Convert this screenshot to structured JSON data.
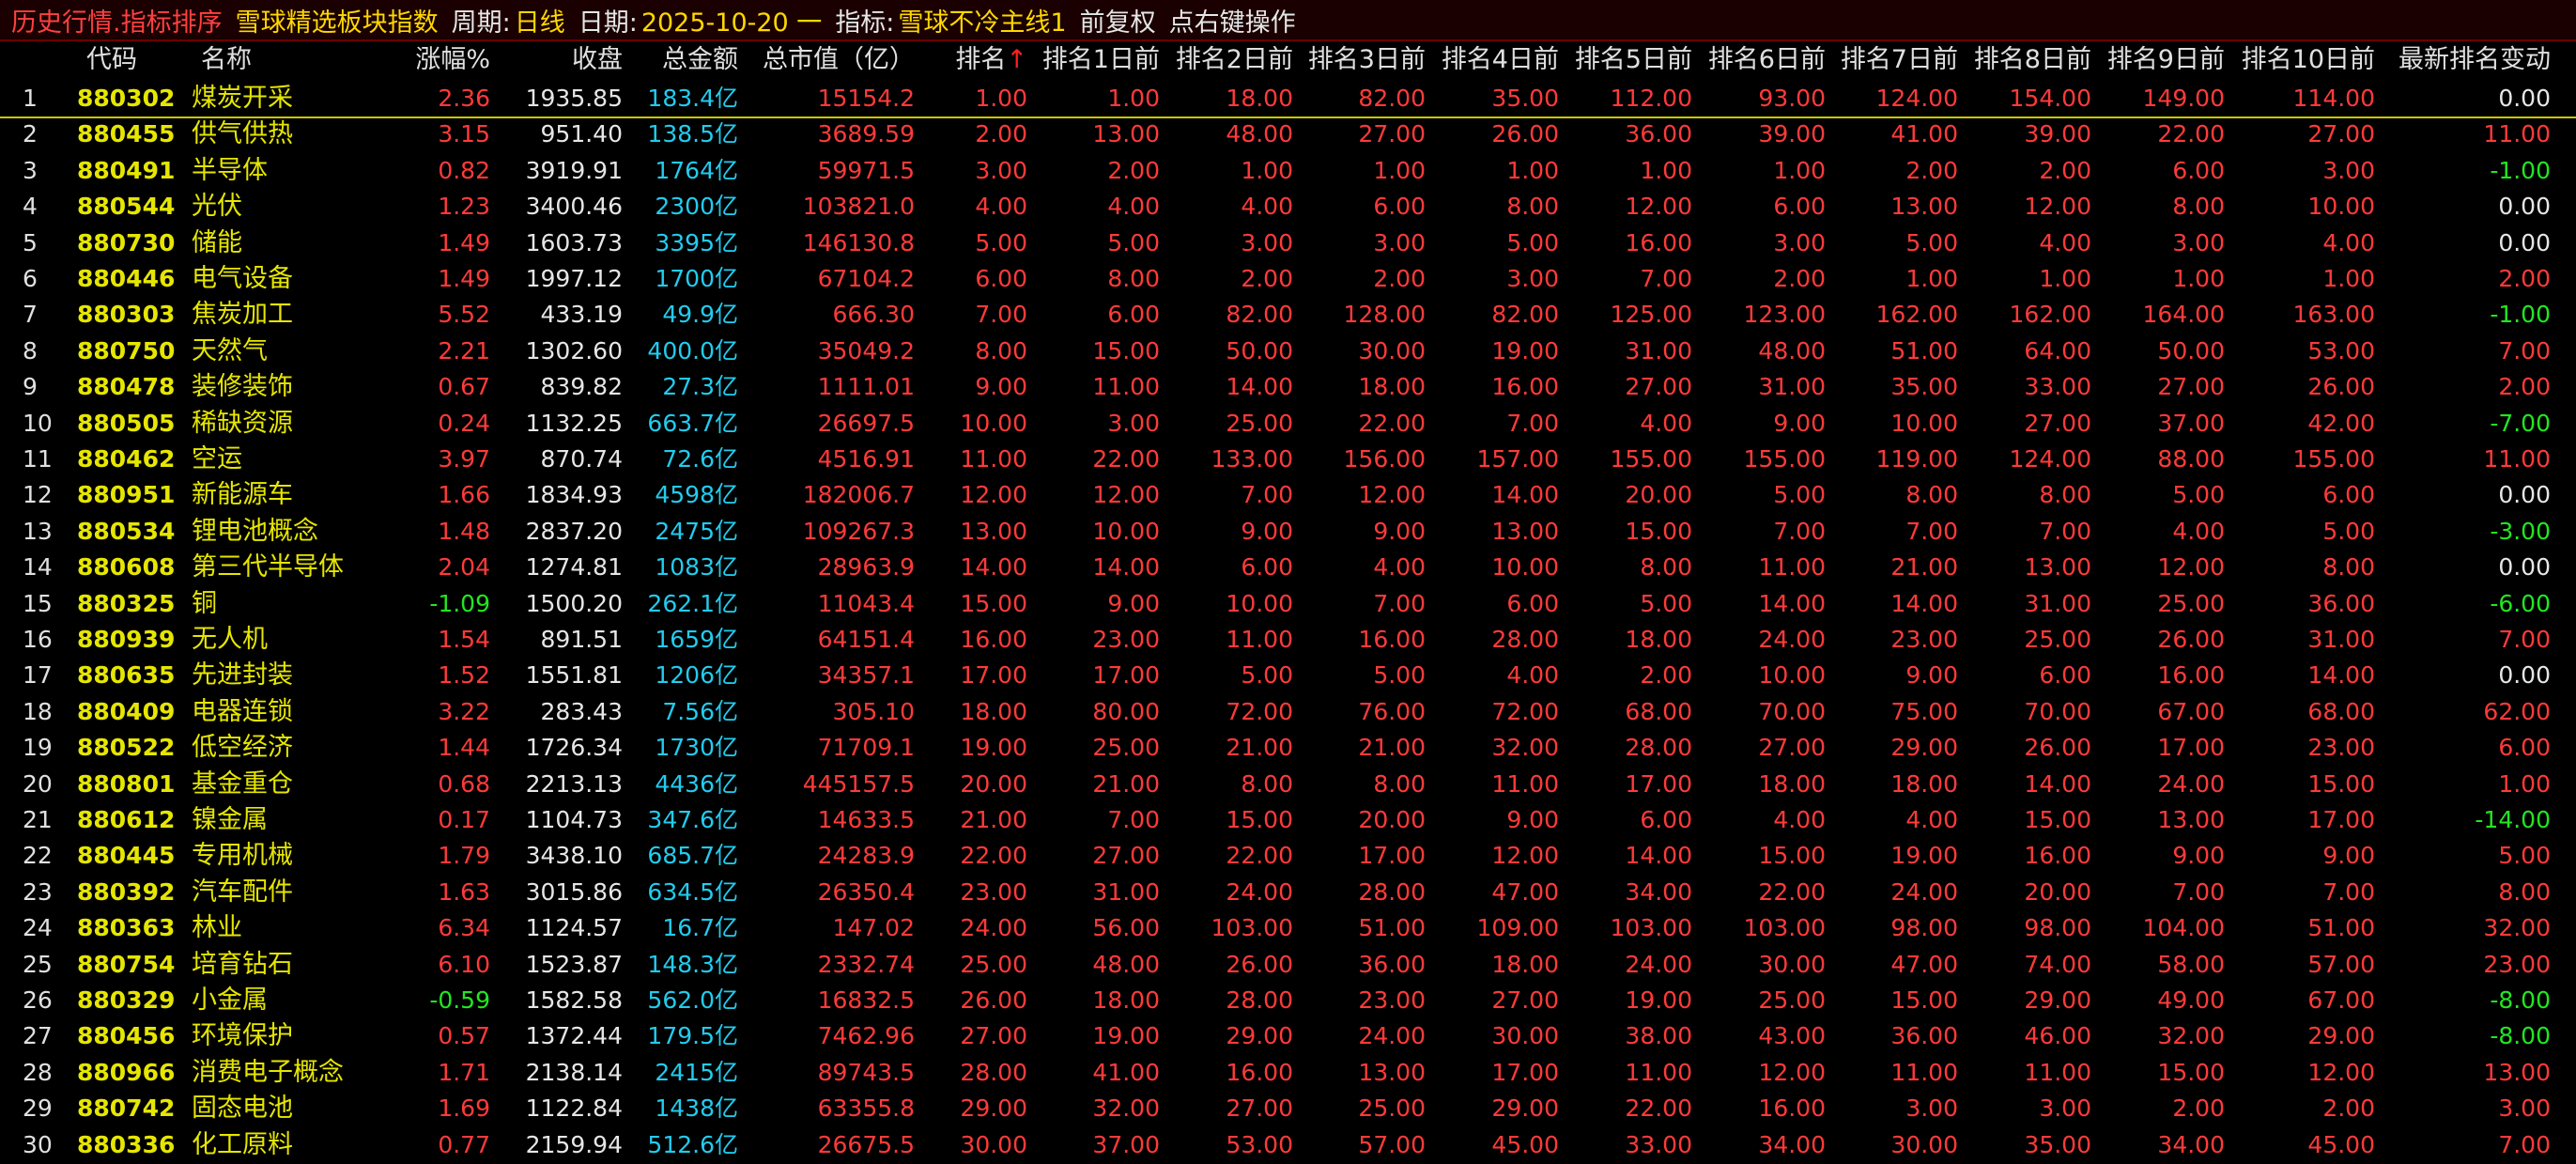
{
  "titlebar": {
    "history": "历史行情.指标排序",
    "board": "雪球精选板块指数",
    "period_label": "周期:",
    "period_value": "日线",
    "date_label": "日期:",
    "date_value": "2025-10-20 一",
    "indicator_label": "指标:",
    "indicator_value": "雪球不冷主线1",
    "adjust": "前复权",
    "rightclick": "点右键操作"
  },
  "colors": {
    "up": "#ff3a3a",
    "down": "#22e622",
    "flat": "#e6e6e6",
    "code": "#e6e600",
    "amount": "#22ccee"
  },
  "columns": [
    "",
    "代码",
    "名称",
    "涨幅%",
    "收盘",
    "总金额",
    "总市值（亿）",
    "排名",
    "排名1日前",
    "排名2日前",
    "排名3日前",
    "排名4日前",
    "排名5日前",
    "排名6日前",
    "排名7日前",
    "排名8日前",
    "排名9日前",
    "排名10日前",
    "最新排名变动"
  ],
  "sort_arrow": "↑",
  "rows": [
    {
      "idx": "1",
      "code": "880302",
      "name": "煤炭开采",
      "chg": "2.36",
      "close": "1935.85",
      "amt": "183.4亿",
      "mcap": "15154.2",
      "r": [
        "1.00",
        "1.00",
        "18.00",
        "82.00",
        "35.00",
        "112.00",
        "93.00",
        "124.00",
        "154.00",
        "149.00",
        "114.00"
      ],
      "delta": "0.00"
    },
    {
      "idx": "2",
      "code": "880455",
      "name": "供气供热",
      "chg": "3.15",
      "close": "951.40",
      "amt": "138.5亿",
      "mcap": "3689.59",
      "r": [
        "2.00",
        "13.00",
        "48.00",
        "27.00",
        "26.00",
        "36.00",
        "39.00",
        "41.00",
        "39.00",
        "22.00",
        "27.00"
      ],
      "delta": "11.00"
    },
    {
      "idx": "3",
      "code": "880491",
      "name": "半导体",
      "chg": "0.82",
      "close": "3919.91",
      "amt": "1764亿",
      "mcap": "59971.5",
      "r": [
        "3.00",
        "2.00",
        "1.00",
        "1.00",
        "1.00",
        "1.00",
        "1.00",
        "2.00",
        "2.00",
        "6.00",
        "3.00"
      ],
      "delta": "-1.00"
    },
    {
      "idx": "4",
      "code": "880544",
      "name": "光伏",
      "chg": "1.23",
      "close": "3400.46",
      "amt": "2300亿",
      "mcap": "103821.0",
      "r": [
        "4.00",
        "4.00",
        "4.00",
        "6.00",
        "8.00",
        "12.00",
        "6.00",
        "13.00",
        "12.00",
        "8.00",
        "10.00"
      ],
      "delta": "0.00"
    },
    {
      "idx": "5",
      "code": "880730",
      "name": "储能",
      "chg": "1.49",
      "close": "1603.73",
      "amt": "3395亿",
      "mcap": "146130.8",
      "r": [
        "5.00",
        "5.00",
        "3.00",
        "3.00",
        "5.00",
        "16.00",
        "3.00",
        "5.00",
        "4.00",
        "3.00",
        "4.00"
      ],
      "delta": "0.00"
    },
    {
      "idx": "6",
      "code": "880446",
      "name": "电气设备",
      "chg": "1.49",
      "close": "1997.12",
      "amt": "1700亿",
      "mcap": "67104.2",
      "r": [
        "6.00",
        "8.00",
        "2.00",
        "2.00",
        "3.00",
        "7.00",
        "2.00",
        "1.00",
        "1.00",
        "1.00",
        "1.00"
      ],
      "delta": "2.00"
    },
    {
      "idx": "7",
      "code": "880303",
      "name": "焦炭加工",
      "chg": "5.52",
      "close": "433.19",
      "amt": "49.9亿",
      "mcap": "666.30",
      "r": [
        "7.00",
        "6.00",
        "82.00",
        "128.00",
        "82.00",
        "125.00",
        "123.00",
        "162.00",
        "162.00",
        "164.00",
        "163.00"
      ],
      "delta": "-1.00"
    },
    {
      "idx": "8",
      "code": "880750",
      "name": "天然气",
      "chg": "2.21",
      "close": "1302.60",
      "amt": "400.0亿",
      "mcap": "35049.2",
      "r": [
        "8.00",
        "15.00",
        "50.00",
        "30.00",
        "19.00",
        "31.00",
        "48.00",
        "51.00",
        "64.00",
        "50.00",
        "53.00"
      ],
      "delta": "7.00"
    },
    {
      "idx": "9",
      "code": "880478",
      "name": "装修装饰",
      "chg": "0.67",
      "close": "839.82",
      "amt": "27.3亿",
      "mcap": "1111.01",
      "r": [
        "9.00",
        "11.00",
        "14.00",
        "18.00",
        "16.00",
        "27.00",
        "31.00",
        "35.00",
        "33.00",
        "27.00",
        "26.00"
      ],
      "delta": "2.00"
    },
    {
      "idx": "10",
      "code": "880505",
      "name": "稀缺资源",
      "chg": "0.24",
      "close": "1132.25",
      "amt": "663.7亿",
      "mcap": "26697.5",
      "r": [
        "10.00",
        "3.00",
        "25.00",
        "22.00",
        "7.00",
        "4.00",
        "9.00",
        "10.00",
        "27.00",
        "37.00",
        "42.00"
      ],
      "delta": "-7.00"
    },
    {
      "idx": "11",
      "code": "880462",
      "name": "空运",
      "chg": "3.97",
      "close": "870.74",
      "amt": "72.6亿",
      "mcap": "4516.91",
      "r": [
        "11.00",
        "22.00",
        "133.00",
        "156.00",
        "157.00",
        "155.00",
        "155.00",
        "119.00",
        "124.00",
        "88.00",
        "155.00"
      ],
      "delta": "11.00"
    },
    {
      "idx": "12",
      "code": "880951",
      "name": "新能源车",
      "chg": "1.66",
      "close": "1834.93",
      "amt": "4598亿",
      "mcap": "182006.7",
      "r": [
        "12.00",
        "12.00",
        "7.00",
        "12.00",
        "14.00",
        "20.00",
        "5.00",
        "8.00",
        "8.00",
        "5.00",
        "6.00"
      ],
      "delta": "0.00"
    },
    {
      "idx": "13",
      "code": "880534",
      "name": "锂电池概念",
      "chg": "1.48",
      "close": "2837.20",
      "amt": "2475亿",
      "mcap": "109267.3",
      "r": [
        "13.00",
        "10.00",
        "9.00",
        "9.00",
        "13.00",
        "15.00",
        "7.00",
        "7.00",
        "7.00",
        "4.00",
        "5.00"
      ],
      "delta": "-3.00"
    },
    {
      "idx": "14",
      "code": "880608",
      "name": "第三代半导体",
      "chg": "2.04",
      "close": "1274.81",
      "amt": "1083亿",
      "mcap": "28963.9",
      "r": [
        "14.00",
        "14.00",
        "6.00",
        "4.00",
        "10.00",
        "8.00",
        "11.00",
        "21.00",
        "13.00",
        "12.00",
        "8.00"
      ],
      "delta": "0.00"
    },
    {
      "idx": "15",
      "code": "880325",
      "name": "铜",
      "chg": "-1.09",
      "close": "1500.20",
      "amt": "262.1亿",
      "mcap": "11043.4",
      "r": [
        "15.00",
        "9.00",
        "10.00",
        "7.00",
        "6.00",
        "5.00",
        "14.00",
        "14.00",
        "31.00",
        "25.00",
        "36.00"
      ],
      "delta": "-6.00"
    },
    {
      "idx": "16",
      "code": "880939",
      "name": "无人机",
      "chg": "1.54",
      "close": "891.51",
      "amt": "1659亿",
      "mcap": "64151.4",
      "r": [
        "16.00",
        "23.00",
        "11.00",
        "16.00",
        "28.00",
        "18.00",
        "24.00",
        "23.00",
        "25.00",
        "26.00",
        "31.00"
      ],
      "delta": "7.00"
    },
    {
      "idx": "17",
      "code": "880635",
      "name": "先进封装",
      "chg": "1.52",
      "close": "1551.81",
      "amt": "1206亿",
      "mcap": "34357.1",
      "r": [
        "17.00",
        "17.00",
        "5.00",
        "5.00",
        "4.00",
        "2.00",
        "10.00",
        "9.00",
        "6.00",
        "16.00",
        "14.00"
      ],
      "delta": "0.00"
    },
    {
      "idx": "18",
      "code": "880409",
      "name": "电器连锁",
      "chg": "3.22",
      "close": "283.43",
      "amt": "7.56亿",
      "mcap": "305.10",
      "r": [
        "18.00",
        "80.00",
        "72.00",
        "76.00",
        "72.00",
        "68.00",
        "70.00",
        "75.00",
        "70.00",
        "67.00",
        "68.00"
      ],
      "delta": "62.00"
    },
    {
      "idx": "19",
      "code": "880522",
      "name": "低空经济",
      "chg": "1.44",
      "close": "1726.34",
      "amt": "1730亿",
      "mcap": "71709.1",
      "r": [
        "19.00",
        "25.00",
        "21.00",
        "21.00",
        "32.00",
        "28.00",
        "27.00",
        "29.00",
        "26.00",
        "17.00",
        "23.00"
      ],
      "delta": "6.00"
    },
    {
      "idx": "20",
      "code": "880801",
      "name": "基金重仓",
      "chg": "0.68",
      "close": "2213.13",
      "amt": "4436亿",
      "mcap": "445157.5",
      "r": [
        "20.00",
        "21.00",
        "8.00",
        "8.00",
        "11.00",
        "17.00",
        "18.00",
        "18.00",
        "14.00",
        "24.00",
        "15.00"
      ],
      "delta": "1.00"
    },
    {
      "idx": "21",
      "code": "880612",
      "name": "镍金属",
      "chg": "0.17",
      "close": "1104.73",
      "amt": "347.6亿",
      "mcap": "14633.5",
      "r": [
        "21.00",
        "7.00",
        "15.00",
        "20.00",
        "9.00",
        "6.00",
        "4.00",
        "4.00",
        "15.00",
        "13.00",
        "17.00"
      ],
      "delta": "-14.00"
    },
    {
      "idx": "22",
      "code": "880445",
      "name": "专用机械",
      "chg": "1.79",
      "close": "3438.10",
      "amt": "685.7亿",
      "mcap": "24283.9",
      "r": [
        "22.00",
        "27.00",
        "22.00",
        "17.00",
        "12.00",
        "14.00",
        "15.00",
        "19.00",
        "16.00",
        "9.00",
        "9.00"
      ],
      "delta": "5.00"
    },
    {
      "idx": "23",
      "code": "880392",
      "name": "汽车配件",
      "chg": "1.63",
      "close": "3015.86",
      "amt": "634.5亿",
      "mcap": "26350.4",
      "r": [
        "23.00",
        "31.00",
        "24.00",
        "28.00",
        "47.00",
        "34.00",
        "22.00",
        "24.00",
        "20.00",
        "7.00",
        "7.00"
      ],
      "delta": "8.00"
    },
    {
      "idx": "24",
      "code": "880363",
      "name": "林业",
      "chg": "6.34",
      "close": "1124.57",
      "amt": "16.7亿",
      "mcap": "147.02",
      "r": [
        "24.00",
        "56.00",
        "103.00",
        "51.00",
        "109.00",
        "103.00",
        "103.00",
        "98.00",
        "98.00",
        "104.00",
        "51.00"
      ],
      "delta": "32.00"
    },
    {
      "idx": "25",
      "code": "880754",
      "name": "培育钻石",
      "chg": "6.10",
      "close": "1523.87",
      "amt": "148.3亿",
      "mcap": "2332.74",
      "r": [
        "25.00",
        "48.00",
        "26.00",
        "36.00",
        "18.00",
        "24.00",
        "30.00",
        "47.00",
        "74.00",
        "58.00",
        "57.00"
      ],
      "delta": "23.00"
    },
    {
      "idx": "26",
      "code": "880329",
      "name": "小金属",
      "chg": "-0.59",
      "close": "1582.58",
      "amt": "562.0亿",
      "mcap": "16832.5",
      "r": [
        "26.00",
        "18.00",
        "28.00",
        "23.00",
        "27.00",
        "19.00",
        "25.00",
        "15.00",
        "29.00",
        "49.00",
        "67.00"
      ],
      "delta": "-8.00"
    },
    {
      "idx": "27",
      "code": "880456",
      "name": "环境保护",
      "chg": "0.57",
      "close": "1372.44",
      "amt": "179.5亿",
      "mcap": "7462.96",
      "r": [
        "27.00",
        "19.00",
        "29.00",
        "24.00",
        "30.00",
        "38.00",
        "43.00",
        "36.00",
        "46.00",
        "32.00",
        "29.00"
      ],
      "delta": "-8.00"
    },
    {
      "idx": "28",
      "code": "880966",
      "name": "消费电子概念",
      "chg": "1.71",
      "close": "2138.14",
      "amt": "2415亿",
      "mcap": "89743.5",
      "r": [
        "28.00",
        "41.00",
        "16.00",
        "13.00",
        "17.00",
        "11.00",
        "12.00",
        "11.00",
        "11.00",
        "15.00",
        "12.00"
      ],
      "delta": "13.00"
    },
    {
      "idx": "29",
      "code": "880742",
      "name": "固态电池",
      "chg": "1.69",
      "close": "1122.84",
      "amt": "1438亿",
      "mcap": "63355.8",
      "r": [
        "29.00",
        "32.00",
        "27.00",
        "25.00",
        "29.00",
        "22.00",
        "16.00",
        "3.00",
        "3.00",
        "2.00",
        "2.00"
      ],
      "delta": "3.00"
    },
    {
      "idx": "30",
      "code": "880336",
      "name": "化工原料",
      "chg": "0.77",
      "close": "2159.94",
      "amt": "512.6亿",
      "mcap": "26675.5",
      "r": [
        "30.00",
        "37.00",
        "53.00",
        "57.00",
        "45.00",
        "33.00",
        "34.00",
        "30.00",
        "35.00",
        "34.00",
        "45.00"
      ],
      "delta": "7.00"
    }
  ]
}
